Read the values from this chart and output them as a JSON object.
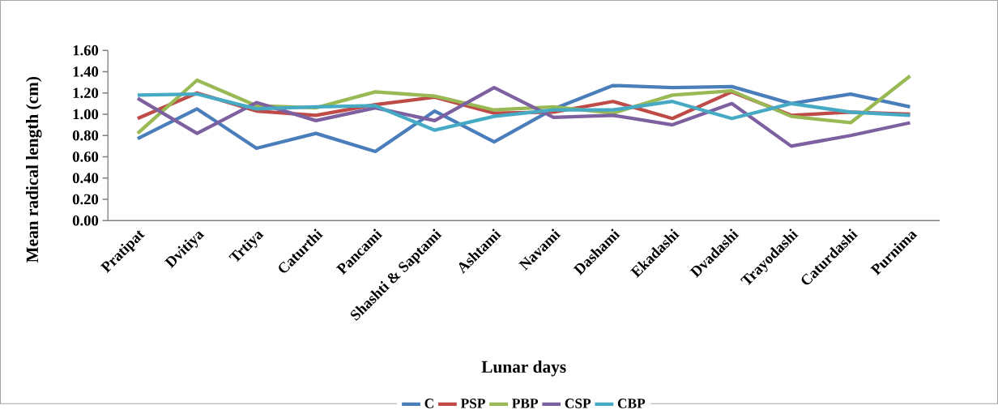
{
  "chart_data": {
    "type": "line",
    "xlabel": "Lunar days",
    "ylabel": "Mean radical length (cm)",
    "categories": [
      "Pratipat",
      "Dvitiya",
      "Trtiya",
      "Caturthi",
      "Pancami",
      "Shashti & Saptami",
      "Ashtami",
      "Navami",
      "Dashami",
      "Ekadashi",
      "Dvadashi",
      "Trayodashi",
      "Caturdashi",
      "Purnima"
    ],
    "series": [
      {
        "name": "C",
        "color": "#4a7ebb",
        "values": [
          0.77,
          1.05,
          0.68,
          0.82,
          0.65,
          1.03,
          0.74,
          1.05,
          1.27,
          1.25,
          1.26,
          1.1,
          1.19,
          1.07
        ]
      },
      {
        "name": "PSP",
        "color": "#be4b48",
        "values": [
          0.96,
          1.2,
          1.03,
          0.99,
          1.09,
          1.16,
          1.01,
          1.02,
          1.12,
          0.96,
          1.21,
          0.99,
          1.02,
          1.0
        ]
      },
      {
        "name": "PBP",
        "color": "#98b954",
        "values": [
          0.82,
          1.32,
          1.08,
          1.06,
          1.21,
          1.17,
          1.04,
          1.07,
          1.01,
          1.18,
          1.22,
          0.98,
          0.92,
          1.36
        ]
      },
      {
        "name": "CSP",
        "color": "#7d60a0",
        "values": [
          1.15,
          0.82,
          1.11,
          0.94,
          1.06,
          0.94,
          1.25,
          0.97,
          0.99,
          0.9,
          1.1,
          0.7,
          0.8,
          0.92
        ]
      },
      {
        "name": "CBP",
        "color": "#46aac5",
        "values": [
          1.18,
          1.19,
          1.05,
          1.07,
          1.08,
          0.85,
          0.98,
          1.04,
          1.04,
          1.12,
          0.96,
          1.1,
          1.02,
          0.99
        ]
      }
    ],
    "ylim": [
      0,
      1.6
    ],
    "yticks": [
      {
        "value": 0,
        "label": "0.00"
      },
      {
        "value": 0.2,
        "label": "0.20"
      },
      {
        "value": 0.4,
        "label": "0.40"
      },
      {
        "value": 0.6,
        "label": "0.60"
      },
      {
        "value": 0.8,
        "label": "0.80"
      },
      {
        "value": 1.0,
        "label": "1.00"
      },
      {
        "value": 1.2,
        "label": "1.20"
      },
      {
        "value": 1.4,
        "label": "1.40"
      },
      {
        "value": 1.6,
        "label": "1.60"
      }
    ],
    "grid": false,
    "legend": "bottom",
    "marker": "none",
    "line_style": "solid"
  }
}
